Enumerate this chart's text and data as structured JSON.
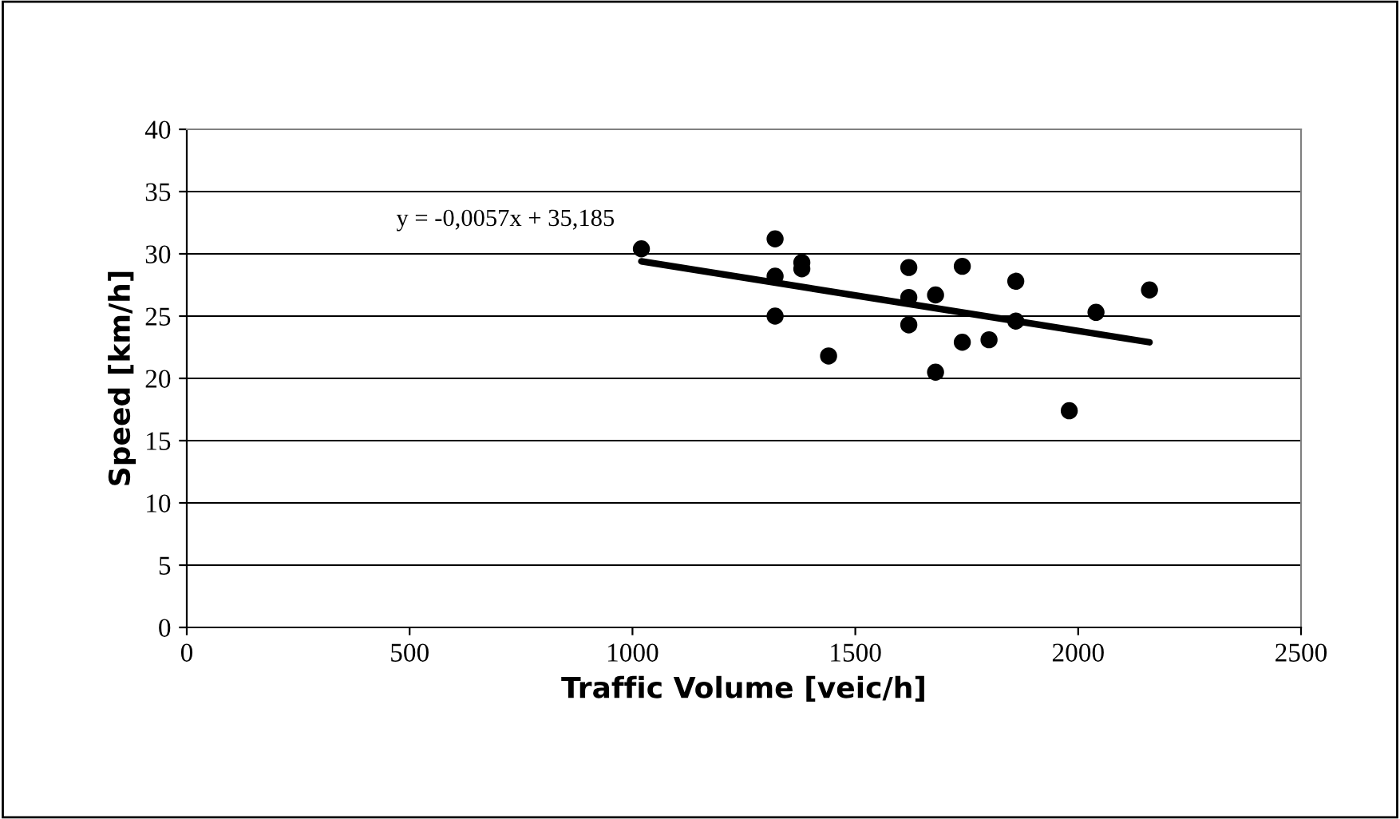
{
  "chart_data": {
    "type": "scatter",
    "xlabel": "Traffic Volume [veic/h]",
    "ylabel": "Speed [km/h]",
    "xlim": [
      0,
      2500
    ],
    "xticks": [
      0,
      500,
      1000,
      1500,
      2000,
      2500
    ],
    "ylim": [
      0,
      40
    ],
    "yticks": [
      0,
      5,
      10,
      15,
      20,
      25,
      30,
      35,
      40
    ],
    "grid": "y",
    "legend": false,
    "marker": "circle",
    "annotations": [
      {
        "text": "y = -0,0057x + 35,185",
        "x": 1020,
        "y": 30.4
      }
    ],
    "series": [
      {
        "color": "#000000",
        "x": [
          1020,
          1320,
          1320,
          1320,
          1380,
          1380,
          1440,
          1620,
          1620,
          1620,
          1680,
          1680,
          1740,
          1740,
          1800,
          1860,
          1860,
          1980,
          2040,
          2160
        ],
        "values": [
          30.4,
          31.2,
          28.2,
          25.0,
          29.3,
          28.8,
          21.8,
          28.9,
          26.5,
          24.3,
          26.7,
          20.5,
          29.0,
          22.9,
          23.1,
          27.8,
          24.6,
          17.4,
          25.3,
          27.1
        ]
      },
      {
        "type": "line",
        "marker": "none",
        "color": "#000000",
        "x": [
          1020,
          2160
        ],
        "values": [
          29.4,
          22.9
        ]
      }
    ]
  }
}
